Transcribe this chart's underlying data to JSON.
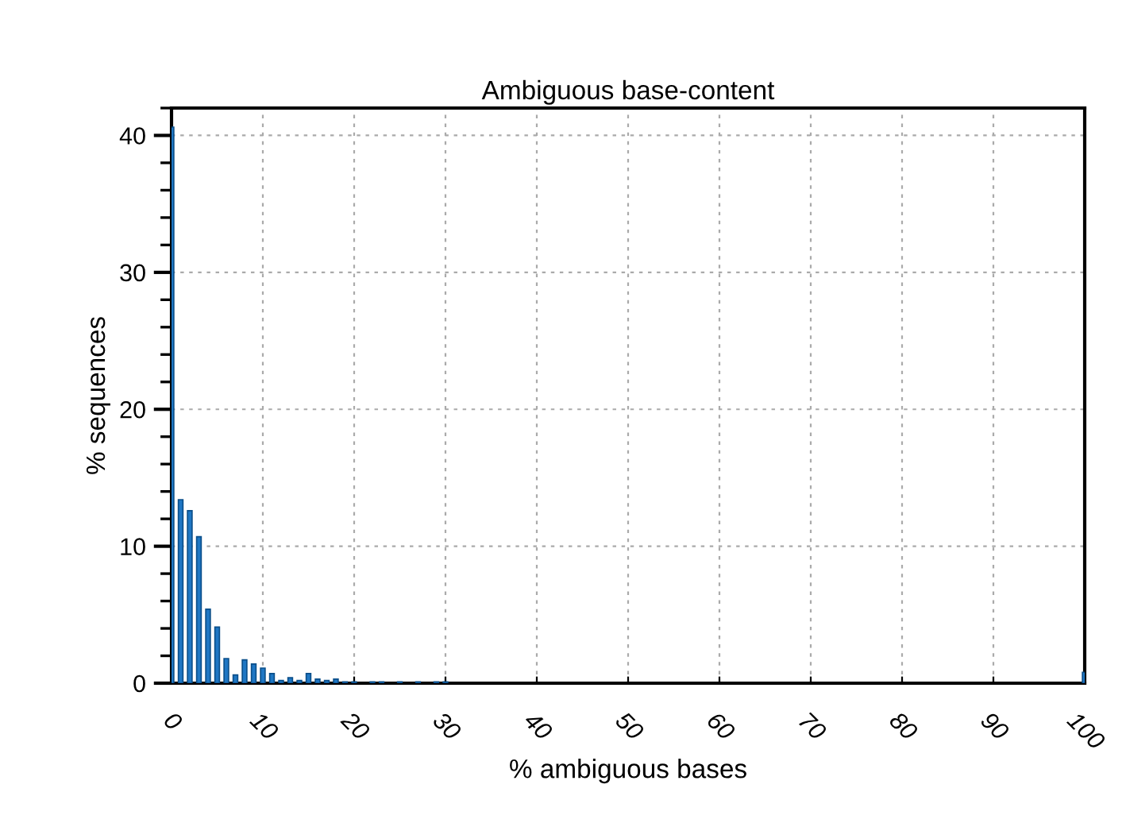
{
  "chart_data": {
    "type": "bar",
    "title": "Ambiguous base-content",
    "xlabel": "% ambiguous bases",
    "ylabel": "% sequences",
    "x": [
      0,
      1,
      2,
      3,
      4,
      5,
      6,
      7,
      8,
      9,
      10,
      11,
      12,
      13,
      14,
      15,
      16,
      17,
      18,
      19,
      20,
      22,
      23,
      25,
      27,
      29,
      30,
      100
    ],
    "values": [
      40.6,
      13.4,
      12.6,
      10.7,
      5.4,
      4.1,
      1.8,
      0.6,
      1.7,
      1.4,
      1.1,
      0.7,
      0.2,
      0.4,
      0.2,
      0.7,
      0.3,
      0.2,
      0.3,
      0.1,
      0.1,
      0.1,
      0.1,
      0.1,
      0.1,
      0.1,
      0.1,
      0.8
    ],
    "color": "#1f77c4",
    "xlim": [
      0,
      100
    ],
    "ylim": [
      0,
      42
    ],
    "xticks": [
      0,
      10,
      20,
      30,
      40,
      50,
      60,
      70,
      80,
      90,
      100
    ],
    "yticks": [
      0,
      10,
      20,
      30,
      40
    ],
    "grid": true
  }
}
